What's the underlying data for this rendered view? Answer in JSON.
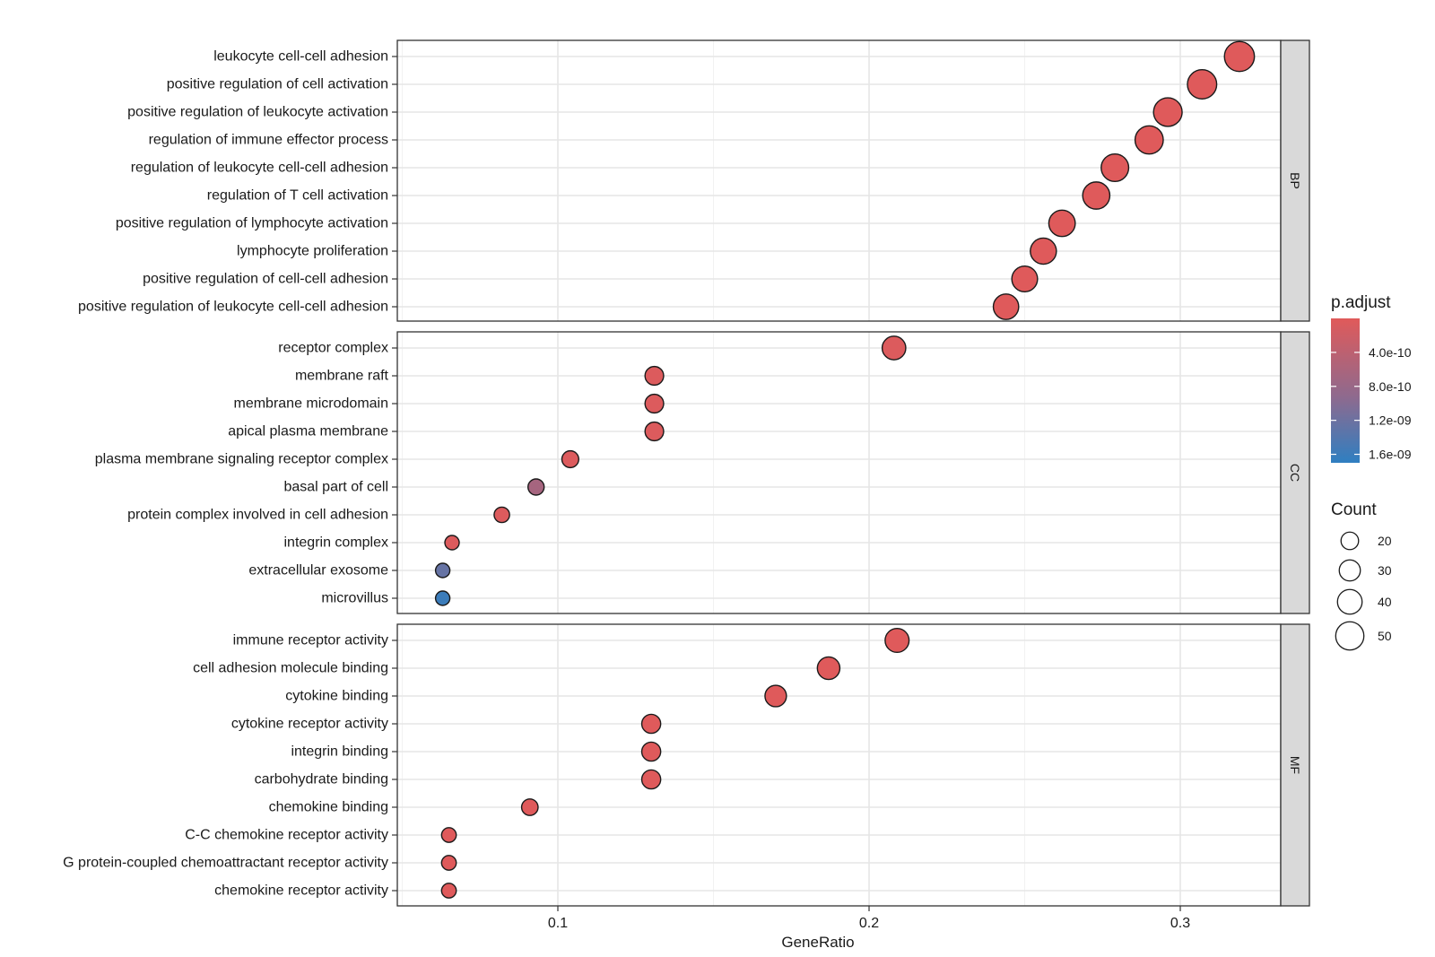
{
  "chart_data": {
    "type": "scatter",
    "xlabel": "GeneRatio",
    "x_ticks": [
      0.1,
      0.2,
      0.3
    ],
    "xlim": [
      0.05,
      0.33
    ],
    "facets": [
      {
        "name": "BP",
        "terms": [
          {
            "label": "leukocyte cell-cell adhesion",
            "gene_ratio": 0.319,
            "count": 55,
            "p_adjust": 1e-11
          },
          {
            "label": "positive regulation of cell activation",
            "gene_ratio": 0.307,
            "count": 53,
            "p_adjust": 1e-11
          },
          {
            "label": "positive regulation of leukocyte activation",
            "gene_ratio": 0.296,
            "count": 51,
            "p_adjust": 1e-11
          },
          {
            "label": "regulation of immune effector process",
            "gene_ratio": 0.29,
            "count": 50,
            "p_adjust": 1e-11
          },
          {
            "label": "regulation of leukocyte cell-cell adhesion",
            "gene_ratio": 0.279,
            "count": 48,
            "p_adjust": 1e-11
          },
          {
            "label": "regulation of T cell activation",
            "gene_ratio": 0.273,
            "count": 47,
            "p_adjust": 1e-11
          },
          {
            "label": "positive regulation of lymphocyte activation",
            "gene_ratio": 0.262,
            "count": 45,
            "p_adjust": 1e-11
          },
          {
            "label": "lymphocyte proliferation",
            "gene_ratio": 0.256,
            "count": 44,
            "p_adjust": 1e-11
          },
          {
            "label": "positive regulation of cell-cell adhesion",
            "gene_ratio": 0.25,
            "count": 43,
            "p_adjust": 1e-11
          },
          {
            "label": "positive regulation of leukocyte cell-cell adhesion",
            "gene_ratio": 0.244,
            "count": 42,
            "p_adjust": 1e-11
          }
        ]
      },
      {
        "name": "CC",
        "terms": [
          {
            "label": "receptor complex",
            "gene_ratio": 0.208,
            "count": 37,
            "p_adjust": 5e-11
          },
          {
            "label": "membrane raft",
            "gene_ratio": 0.131,
            "count": 23,
            "p_adjust": 5e-11
          },
          {
            "label": "membrane microdomain",
            "gene_ratio": 0.131,
            "count": 23,
            "p_adjust": 5e-11
          },
          {
            "label": "apical plasma membrane",
            "gene_ratio": 0.131,
            "count": 23,
            "p_adjust": 5e-11
          },
          {
            "label": "plasma membrane signaling receptor complex",
            "gene_ratio": 0.104,
            "count": 18,
            "p_adjust": 5e-11
          },
          {
            "label": "basal part of cell",
            "gene_ratio": 0.093,
            "count": 16,
            "p_adjust": 6.5e-10
          },
          {
            "label": "protein complex involved in cell adhesion",
            "gene_ratio": 0.082,
            "count": 14,
            "p_adjust": 5e-11
          },
          {
            "label": "integrin complex",
            "gene_ratio": 0.066,
            "count": 11,
            "p_adjust": 5e-11
          },
          {
            "label": "extracellular exosome",
            "gene_ratio": 0.063,
            "count": 11,
            "p_adjust": 1.25e-09
          },
          {
            "label": "microvillus",
            "gene_ratio": 0.063,
            "count": 11,
            "p_adjust": 1.6e-09
          }
        ]
      },
      {
        "name": "MF",
        "terms": [
          {
            "label": "immune receptor activity",
            "gene_ratio": 0.209,
            "count": 38,
            "p_adjust": 1e-11
          },
          {
            "label": "cell adhesion molecule binding",
            "gene_ratio": 0.187,
            "count": 34,
            "p_adjust": 1e-11
          },
          {
            "label": "cytokine binding",
            "gene_ratio": 0.17,
            "count": 31,
            "p_adjust": 1e-11
          },
          {
            "label": "cytokine receptor activity",
            "gene_ratio": 0.13,
            "count": 24,
            "p_adjust": 1e-11
          },
          {
            "label": "integrin binding",
            "gene_ratio": 0.13,
            "count": 24,
            "p_adjust": 1e-11
          },
          {
            "label": "carbohydrate binding",
            "gene_ratio": 0.13,
            "count": 24,
            "p_adjust": 1e-11
          },
          {
            "label": "chemokine binding",
            "gene_ratio": 0.091,
            "count": 17,
            "p_adjust": 1e-11
          },
          {
            "label": "C-C chemokine receptor activity",
            "gene_ratio": 0.065,
            "count": 12,
            "p_adjust": 1e-11
          },
          {
            "label": "G protein-coupled chemoattractant receptor activity",
            "gene_ratio": 0.065,
            "count": 12,
            "p_adjust": 1e-11
          },
          {
            "label": "chemokine receptor activity",
            "gene_ratio": 0.065,
            "count": 12,
            "p_adjust": 1e-11
          }
        ]
      }
    ],
    "color_legend": {
      "title": "p.adjust",
      "low_color": "#e05a5a",
      "high_color": "#2f7fc1",
      "range": [
        0,
        1.7e-09
      ],
      "ticks": [
        {
          "value": 4e-10,
          "label": "4.0e-10"
        },
        {
          "value": 8e-10,
          "label": "8.0e-10"
        },
        {
          "value": 1.2e-09,
          "label": "1.2e-09"
        },
        {
          "value": 1.6e-09,
          "label": "1.6e-09"
        }
      ]
    },
    "size_legend": {
      "title": "Count",
      "values": [
        20,
        30,
        40,
        50
      ]
    },
    "grid": true,
    "legend_position": "right"
  }
}
